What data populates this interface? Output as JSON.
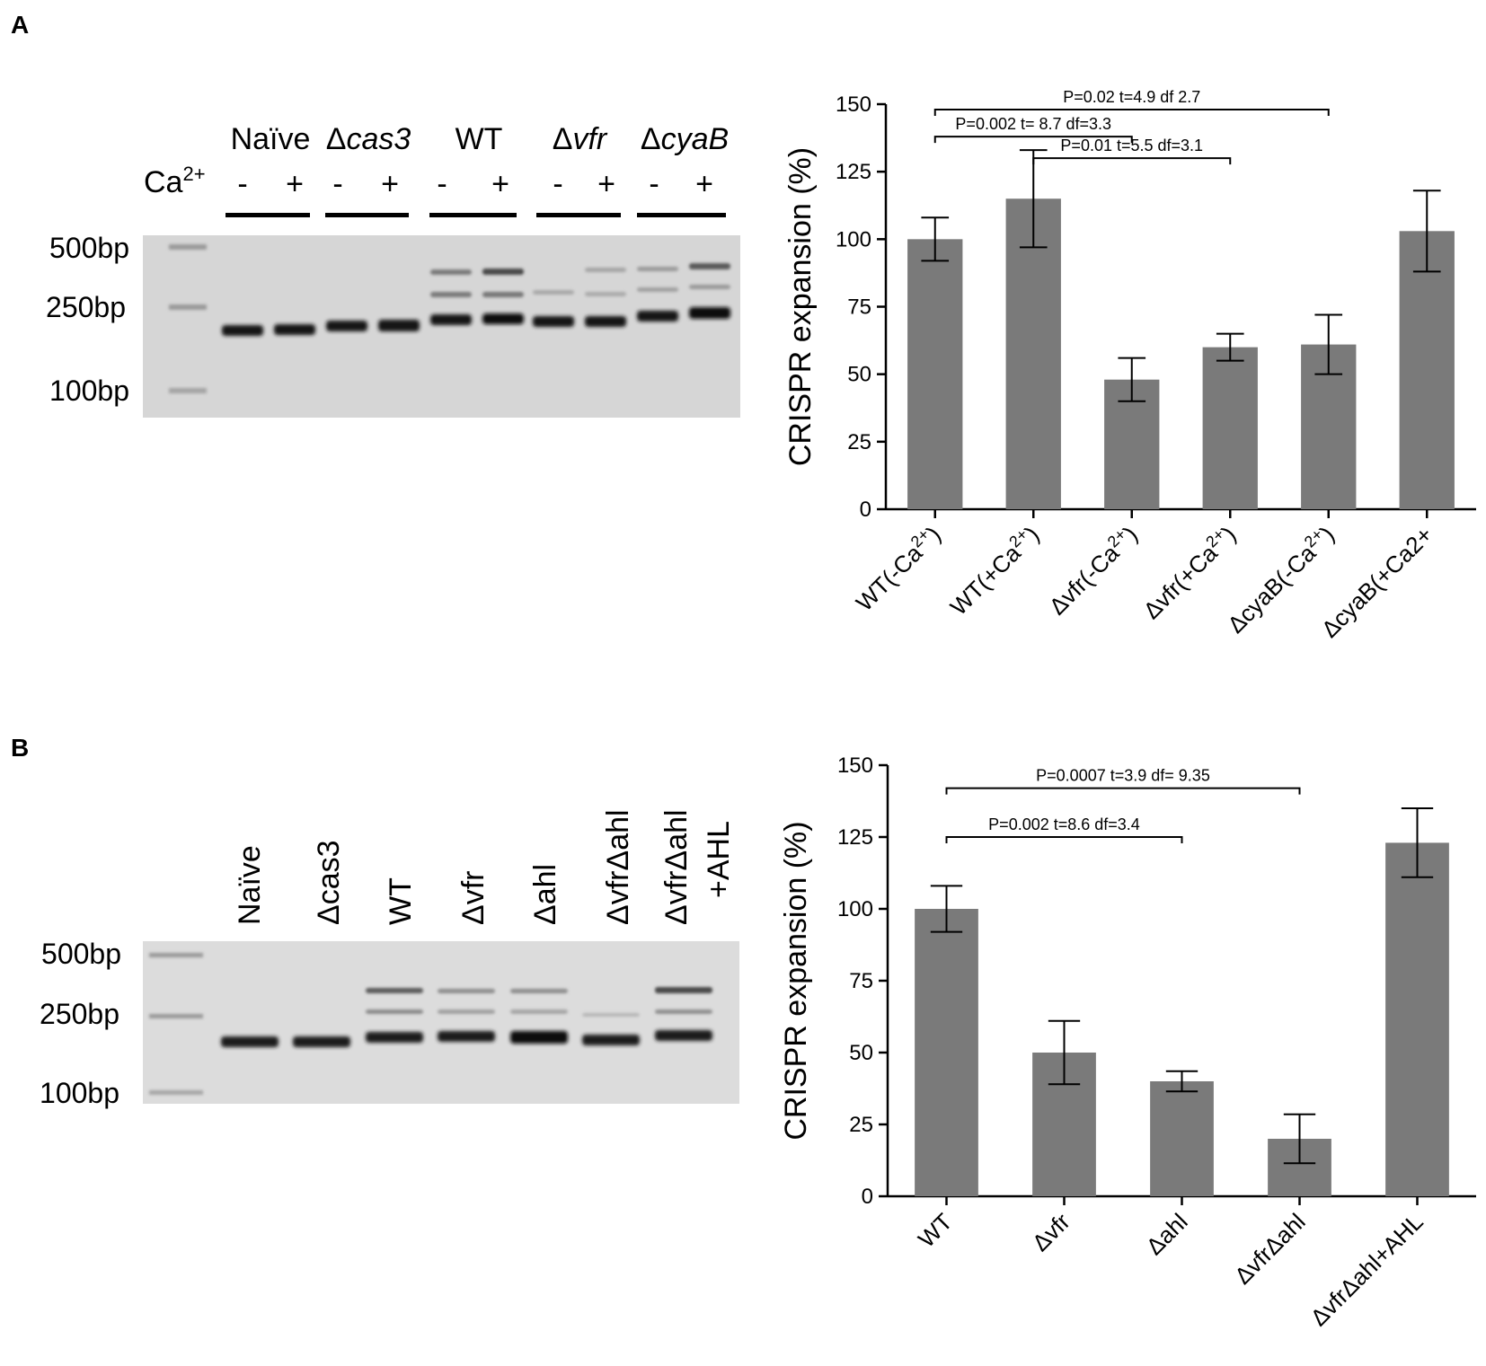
{
  "panels": {
    "a": {
      "letter": "A",
      "gel": {
        "ladder": [
          "500bp",
          "250bp",
          "100bp"
        ],
        "ca_label": "Ca",
        "ca_sup": "2+",
        "groups": [
          {
            "prefix": "",
            "name": "Naïve",
            "italic": false
          },
          {
            "prefix": "Δ",
            "name": "cas3",
            "italic": true
          },
          {
            "prefix": "",
            "name": "WT",
            "italic": false
          },
          {
            "prefix": "Δ",
            "name": "vfr",
            "italic": true
          },
          {
            "prefix": "Δ",
            "name": "cyaB",
            "italic": true
          }
        ],
        "signs": [
          "-",
          "+",
          "-",
          "+",
          "-",
          "+",
          "-",
          "+",
          "-",
          "+"
        ]
      }
    },
    "b": {
      "letter": "B",
      "gel": {
        "ladder": [
          "500bp",
          "250bp",
          "100bp"
        ],
        "lanes": [
          "Naïve",
          "Δcas3",
          "WT",
          "Δvfr",
          "Δahl",
          "ΔvfrΔahl",
          "ΔvfrΔahl",
          "+AHL"
        ]
      }
    }
  },
  "chart_data": [
    {
      "type": "bar",
      "title": "",
      "xlabel": "",
      "ylabel": "CRISPR expansion (%)",
      "ylim": [
        0,
        150
      ],
      "yticks": [
        "0",
        "25",
        "50",
        "75",
        "100",
        "125",
        "150"
      ],
      "grid": false,
      "categories": [
        {
          "pre": "WT(-Ca",
          "sup": "2+",
          "post": ")"
        },
        {
          "pre": "WT(+Ca",
          "sup": "2+",
          "post": ")"
        },
        {
          "pre": "Δvfr(-Ca",
          "sup": "2+",
          "post": ")"
        },
        {
          "pre": "Δvfr(+Ca",
          "sup": "2+",
          "post": ")"
        },
        {
          "pre": "ΔcyaB(-Ca",
          "sup": "2+",
          "post": ")"
        },
        {
          "pre": "ΔcyaB(+Ca2+",
          "sup": "",
          "post": ""
        }
      ],
      "values": [
        100,
        115,
        48,
        60,
        61,
        103
      ],
      "errors": [
        8,
        18,
        8,
        5,
        11,
        15
      ],
      "bar_color": "#7a7a7a",
      "annotations": [
        {
          "from": 0,
          "to": 4,
          "y": 148,
          "text": "P=0.02 t=4.9 df 2.7"
        },
        {
          "from": 0,
          "to": 2,
          "y": 138,
          "text": "P=0.002 t= 8.7 df=3.3"
        },
        {
          "from": 1,
          "to": 3,
          "y": 130,
          "text": "P=0.01 t=5.5 df=3.1"
        }
      ]
    },
    {
      "type": "bar",
      "title": "",
      "xlabel": "",
      "ylabel": "CRISPR expansion (%)",
      "ylim": [
        0,
        150
      ],
      "yticks": [
        "0",
        "25",
        "50",
        "75",
        "100",
        "125",
        "150"
      ],
      "grid": false,
      "categories": [
        {
          "pre": "WT",
          "sup": "",
          "post": ""
        },
        {
          "pre": "Δvfr",
          "sup": "",
          "post": ""
        },
        {
          "pre": "Δahl",
          "sup": "",
          "post": ""
        },
        {
          "pre": "ΔvfrΔahl",
          "sup": "",
          "post": ""
        },
        {
          "pre": "ΔvfrΔahl+AHL",
          "sup": "",
          "post": ""
        }
      ],
      "values": [
        100,
        50,
        40,
        20,
        123
      ],
      "errors": [
        8,
        11,
        3.5,
        8.5,
        12
      ],
      "bar_color": "#7a7a7a",
      "annotations": [
        {
          "from": 0,
          "to": 3,
          "y": 142,
          "text": "P=0.0007 t=3.9 df= 9.35"
        },
        {
          "from": 0,
          "to": 2,
          "y": 125,
          "text": "P=0.002 t=8.6 df=3.4"
        }
      ]
    }
  ]
}
